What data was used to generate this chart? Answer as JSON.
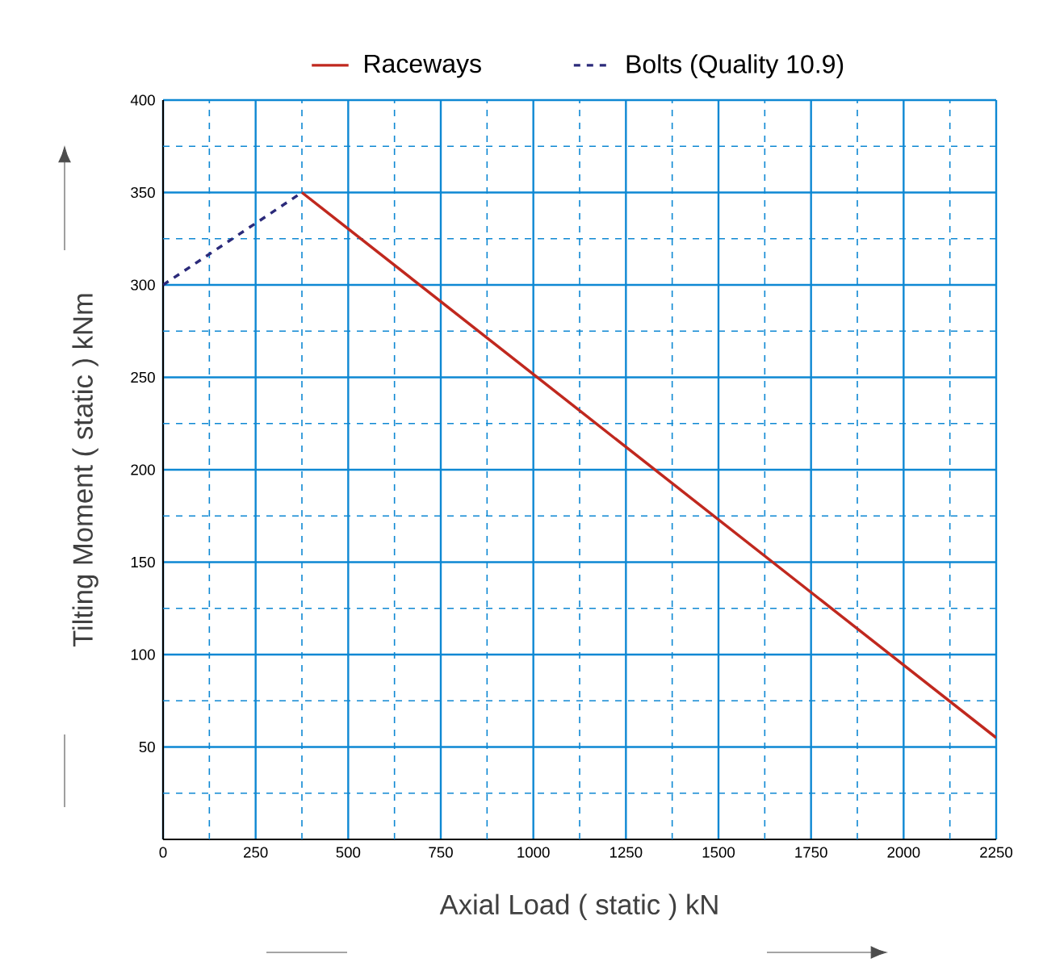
{
  "chart_data": {
    "type": "line",
    "xlabel": "Axial Load  ( static ) kN",
    "ylabel": "Tilting Moment ( static )  kNm",
    "xlim": [
      0,
      2250
    ],
    "ylim": [
      0,
      400
    ],
    "xticks": [
      0,
      {
        "value": 125,
        "label": null
      },
      250,
      {
        "value": 375,
        "label": null
      },
      500,
      {
        "value": 625,
        "label": null
      },
      750,
      {
        "value": 875,
        "label": null
      },
      1000,
      {
        "value": 1125,
        "label": null
      },
      1250,
      {
        "value": 1375,
        "label": null
      },
      1500,
      {
        "value": 1625,
        "label": null
      },
      1750,
      {
        "value": 1875,
        "label": null
      },
      2000,
      {
        "value": 2125,
        "label": null
      },
      2250
    ],
    "yticks": [
      {
        "value": 25,
        "label": null
      },
      50,
      {
        "value": 75,
        "label": null
      },
      100,
      {
        "value": 125,
        "label": null
      },
      150,
      {
        "value": 175,
        "label": null
      },
      200,
      {
        "value": 225,
        "label": null
      },
      250,
      {
        "value": 275,
        "label": null
      },
      300,
      {
        "value": 325,
        "label": null
      },
      350,
      {
        "value": 375,
        "label": null
      },
      400
    ],
    "grid": true,
    "legend": "top",
    "series": [
      {
        "name": "Raceways",
        "color": "#c0281e",
        "line_style": "solid",
        "x": [
          375,
          2250
        ],
        "values": [
          350,
          55
        ]
      },
      {
        "name": "Bolts (Quality 10.9)",
        "color": "#2b2a7a",
        "line_style": "dashed",
        "x": [
          0,
          375
        ],
        "values": [
          300,
          350
        ]
      }
    ]
  }
}
